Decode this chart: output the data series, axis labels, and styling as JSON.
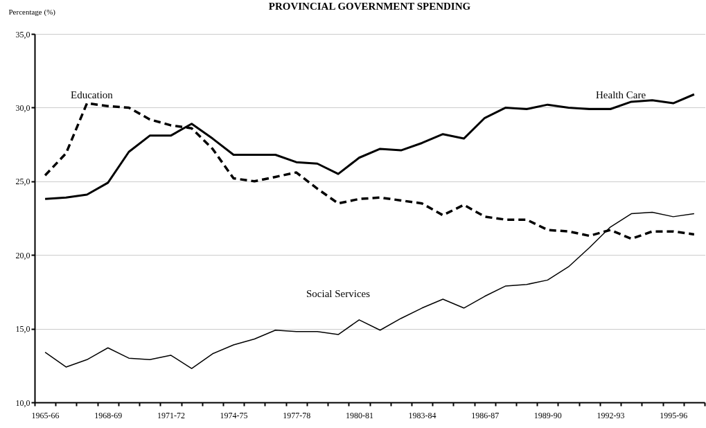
{
  "chart_data": {
    "type": "line",
    "title": "PROVINCIAL GOVERNMENT SPENDING",
    "ylabel": "Percentage (%)",
    "categories": [
      "1965-66",
      null,
      null,
      "1968-69",
      null,
      null,
      "1971-72",
      null,
      null,
      "1974-75",
      null,
      null,
      "1977-78",
      null,
      null,
      "1980-81",
      null,
      null,
      "1983-84",
      null,
      null,
      "1986-87",
      null,
      null,
      "1989-90",
      null,
      null,
      "1992-93",
      null,
      null,
      "1995-96",
      null
    ],
    "series": [
      {
        "name": "Education",
        "color": "#000000",
        "line_style": "dashed",
        "values": [
          25.4,
          26.9,
          30.3,
          30.1,
          30.0,
          29.2,
          28.8,
          28.6,
          27.2,
          25.2,
          25.0,
          25.3,
          25.6,
          24.5,
          23.5,
          23.8,
          23.9,
          23.7,
          23.5,
          22.7,
          23.4,
          22.6,
          22.4,
          22.4,
          21.7,
          21.6,
          21.3,
          21.7,
          21.1,
          21.6,
          21.6,
          21.4
        ]
      },
      {
        "name": "Health Care",
        "color": "#000000",
        "line_style": "solid",
        "values": [
          23.8,
          23.9,
          24.1,
          24.9,
          27.0,
          28.1,
          28.1,
          28.9,
          27.9,
          26.8,
          26.8,
          26.8,
          26.3,
          26.2,
          25.5,
          26.6,
          27.2,
          27.1,
          27.6,
          28.2,
          27.9,
          29.3,
          30.0,
          29.9,
          30.2,
          30.0,
          29.9,
          29.9,
          30.4,
          30.5,
          30.3,
          30.9
        ]
      },
      {
        "name": "Social Services",
        "color": "#000000",
        "line_style": "solid",
        "values": [
          13.4,
          12.4,
          12.9,
          13.7,
          13.0,
          12.9,
          13.2,
          12.3,
          13.3,
          13.9,
          14.3,
          14.9,
          14.8,
          14.8,
          14.6,
          15.6,
          14.9,
          15.7,
          16.4,
          17.0,
          16.4,
          17.2,
          17.9,
          18.0,
          18.3,
          19.2,
          20.5,
          21.9,
          22.8,
          22.9,
          22.6,
          22.8
        ]
      }
    ],
    "ylim": [
      10,
      35
    ],
    "yticks": [
      {
        "value": 10,
        "label": "10,0"
      },
      {
        "value": 15,
        "label": "15,0"
      },
      {
        "value": 20,
        "label": "20,0"
      },
      {
        "value": 25,
        "label": "25,0"
      },
      {
        "value": 30,
        "label": "30,0"
      },
      {
        "value": 35,
        "label": "35,0"
      }
    ],
    "grid": "y"
  }
}
